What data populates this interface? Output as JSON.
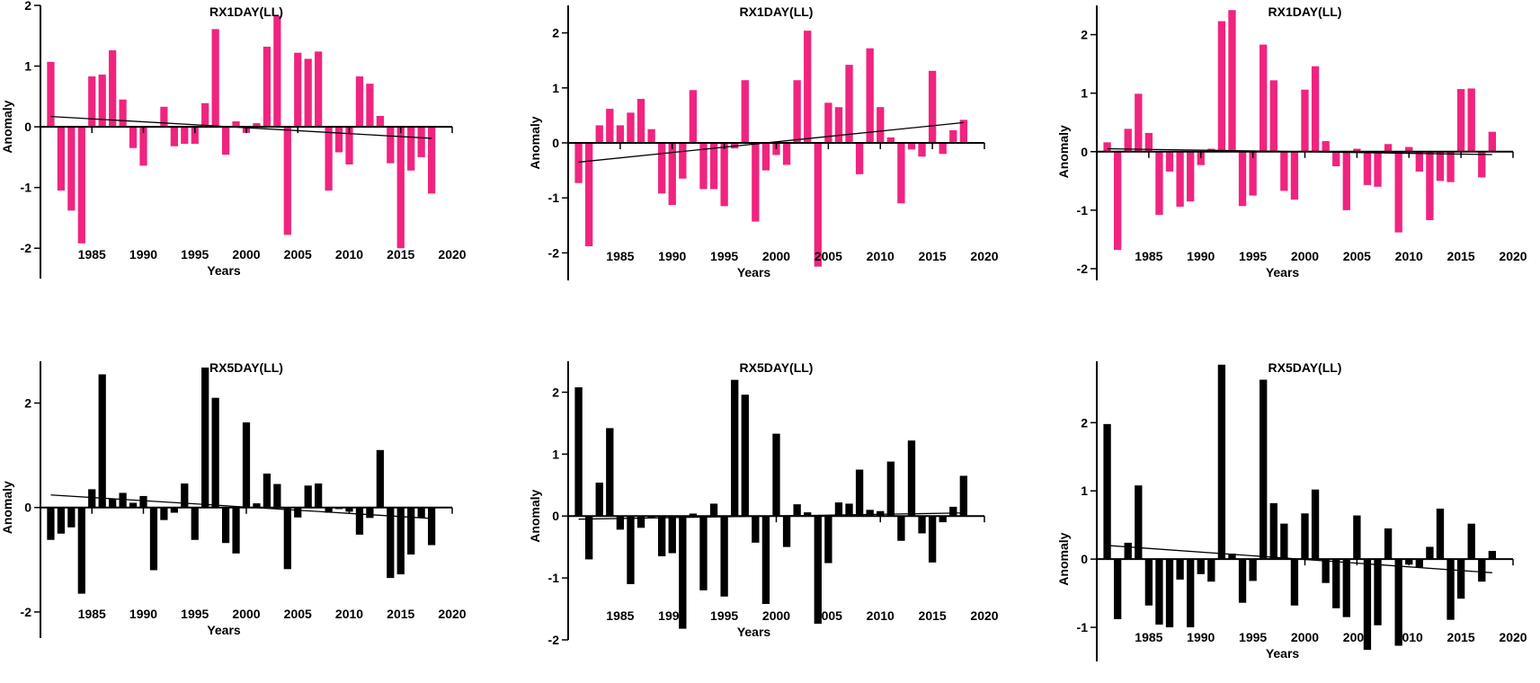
{
  "chart_data": [
    {
      "type": "bar",
      "title": "RX1DAY(LL)",
      "xlabel": "Years",
      "ylabel": "Anomaly",
      "color": "#f0247f",
      "xlim": [
        1980,
        2020
      ],
      "ylim": [
        -2.5,
        2
      ],
      "yticks": [
        -2,
        -1,
        0,
        1,
        2
      ],
      "xticks": [
        1985,
        1990,
        1995,
        2000,
        2005,
        2010,
        2015,
        2020
      ],
      "x": [
        1981,
        1982,
        1983,
        1984,
        1985,
        1986,
        1987,
        1988,
        1989,
        1990,
        1991,
        1992,
        1993,
        1994,
        1995,
        1996,
        1997,
        1998,
        1999,
        2000,
        2001,
        2002,
        2003,
        2004,
        2005,
        2006,
        2007,
        2008,
        2009,
        2010,
        2011,
        2012,
        2013,
        2014,
        2015,
        2016,
        2017,
        2018
      ],
      "values": [
        1.07,
        -1.05,
        -1.38,
        -1.92,
        0.83,
        0.86,
        1.26,
        0.45,
        -0.35,
        -0.64,
        0.0,
        0.33,
        -0.32,
        -0.28,
        -0.28,
        0.39,
        1.61,
        -0.46,
        0.09,
        -0.1,
        0.06,
        1.32,
        1.83,
        -1.78,
        1.22,
        1.12,
        1.24,
        -1.05,
        -0.42,
        -0.62,
        0.83,
        0.71,
        0.18,
        -0.6,
        -2.0,
        -0.72,
        -0.5,
        -1.1
      ],
      "trend": [
        [
          1981,
          0.17
        ],
        [
          2018,
          -0.19
        ]
      ]
    },
    {
      "type": "bar",
      "title": "RX1DAY(LL)",
      "xlabel": "Years",
      "ylabel": "Anomaly",
      "color": "#f0247f",
      "xlim": [
        1980,
        2020
      ],
      "ylim": [
        -2.5,
        2.5
      ],
      "yticks": [
        -2,
        -1,
        0,
        1,
        2
      ],
      "xticks": [
        1985,
        1990,
        1995,
        2000,
        2005,
        2010,
        2015,
        2020
      ],
      "x": [
        1981,
        1982,
        1983,
        1984,
        1985,
        1986,
        1987,
        1988,
        1989,
        1990,
        1991,
        1992,
        1993,
        1994,
        1995,
        1996,
        1997,
        1998,
        1999,
        2000,
        2001,
        2002,
        2003,
        2004,
        2005,
        2006,
        2007,
        2008,
        2009,
        2010,
        2011,
        2012,
        2013,
        2014,
        2015,
        2016,
        2017,
        2018
      ],
      "values": [
        -0.73,
        -1.88,
        0.32,
        0.62,
        0.32,
        0.55,
        0.8,
        0.25,
        -0.92,
        -1.13,
        -0.65,
        0.96,
        -0.84,
        -0.84,
        -1.15,
        -0.1,
        1.14,
        -1.43,
        -0.5,
        -0.22,
        -0.4,
        1.14,
        2.04,
        -2.25,
        0.73,
        0.65,
        1.42,
        -0.57,
        1.72,
        0.65,
        0.1,
        -1.1,
        -0.12,
        -0.25,
        1.31,
        -0.2,
        0.23,
        0.42
      ],
      "trend": [
        [
          1981,
          -0.35
        ],
        [
          2018,
          0.37
        ]
      ]
    },
    {
      "type": "bar",
      "title": "RX1DAY(LL)",
      "xlabel": "Years",
      "ylabel": "Anomaly",
      "color": "#f0247f",
      "xlim": [
        1980,
        2020
      ],
      "ylim": [
        -2.2,
        2.5
      ],
      "yticks": [
        -2,
        -1,
        0,
        1,
        2
      ],
      "xticks": [
        1985,
        1990,
        1995,
        2000,
        2005,
        2010,
        2015,
        2020
      ],
      "x": [
        1981,
        1982,
        1983,
        1984,
        1985,
        1986,
        1987,
        1988,
        1989,
        1990,
        1991,
        1992,
        1993,
        1994,
        1995,
        1996,
        1997,
        1998,
        1999,
        2000,
        2001,
        2002,
        2003,
        2004,
        2005,
        2006,
        2007,
        2008,
        2009,
        2010,
        2011,
        2012,
        2013,
        2014,
        2015,
        2016,
        2017,
        2018
      ],
      "values": [
        0.16,
        -1.68,
        0.39,
        0.99,
        0.32,
        -1.08,
        -0.34,
        -0.94,
        -0.85,
        -0.23,
        0.05,
        2.23,
        2.42,
        -0.93,
        -0.75,
        1.83,
        1.22,
        -0.67,
        -0.82,
        1.06,
        1.46,
        0.18,
        -0.25,
        -1.0,
        0.05,
        -0.57,
        -0.6,
        0.13,
        -1.38,
        0.08,
        -0.34,
        -1.17,
        -0.5,
        -0.52,
        1.07,
        1.08,
        -0.44,
        0.34
      ],
      "trend": [
        [
          1981,
          0.05
        ],
        [
          2018,
          -0.05
        ]
      ]
    },
    {
      "type": "bar",
      "title": "RX5DAY(LL)",
      "xlabel": "Years",
      "ylabel": "Anomaly",
      "color": "#000000",
      "xlim": [
        1980,
        2020
      ],
      "ylim": [
        -2.5,
        2.8
      ],
      "yticks": [
        -2,
        0,
        2
      ],
      "xticks": [
        1985,
        1990,
        1995,
        2000,
        2005,
        2010,
        2015,
        2020
      ],
      "x": [
        1981,
        1982,
        1983,
        1984,
        1985,
        1986,
        1987,
        1988,
        1989,
        1990,
        1991,
        1992,
        1993,
        1994,
        1995,
        1996,
        1997,
        1998,
        1999,
        2000,
        2001,
        2002,
        2003,
        2004,
        2005,
        2006,
        2007,
        2008,
        2009,
        2010,
        2011,
        2012,
        2013,
        2014,
        2015,
        2016,
        2017,
        2018
      ],
      "values": [
        -0.62,
        -0.5,
        -0.38,
        -1.65,
        0.35,
        2.55,
        0.17,
        0.28,
        0.09,
        0.22,
        -1.2,
        -0.24,
        -0.1,
        0.46,
        -0.62,
        2.68,
        2.1,
        -0.68,
        -0.88,
        1.63,
        0.08,
        0.65,
        0.45,
        -1.18,
        -0.19,
        0.42,
        0.46,
        -0.1,
        -0.03,
        -0.08,
        -0.52,
        -0.2,
        1.1,
        -1.35,
        -1.28,
        -0.9,
        -0.2,
        -0.72
      ],
      "trend": [
        [
          1981,
          0.24
        ],
        [
          2018,
          -0.21
        ]
      ]
    },
    {
      "type": "bar",
      "title": "RX5DAY(LL)",
      "xlabel": "Years",
      "ylabel": "Anomaly",
      "color": "#000000",
      "xlim": [
        1980,
        2020
      ],
      "ylim": [
        -2,
        2.5
      ],
      "yticks": [
        -2,
        -1,
        0,
        1,
        2
      ],
      "xticks": [
        1985,
        1990,
        1995,
        2000,
        2005,
        2010,
        2015,
        2020
      ],
      "x": [
        1981,
        1982,
        1983,
        1984,
        1985,
        1986,
        1987,
        1988,
        1989,
        1990,
        1991,
        1992,
        1993,
        1994,
        1995,
        1996,
        1997,
        1998,
        1999,
        2000,
        2001,
        2002,
        2003,
        2004,
        2005,
        2006,
        2007,
        2008,
        2009,
        2010,
        2011,
        2012,
        2013,
        2014,
        2015,
        2016,
        2017,
        2018
      ],
      "values": [
        2.08,
        -0.7,
        0.54,
        1.42,
        -0.22,
        -1.1,
        -0.19,
        -0.03,
        -0.65,
        -0.6,
        -1.82,
        0.04,
        -1.2,
        0.2,
        -1.3,
        2.2,
        1.96,
        -0.43,
        -1.42,
        1.33,
        -0.5,
        0.19,
        0.06,
        -1.74,
        -0.76,
        0.22,
        0.2,
        0.75,
        0.1,
        0.08,
        0.88,
        -0.4,
        1.22,
        -0.28,
        -0.75,
        -0.1,
        0.15,
        0.65
      ],
      "trend": [
        [
          1981,
          -0.05
        ],
        [
          2018,
          0.05
        ]
      ]
    },
    {
      "type": "bar",
      "title": "RX5DAY(LL)",
      "xlabel": "Years",
      "ylabel": "Anomaly",
      "color": "#000000",
      "xlim": [
        1980,
        2020
      ],
      "ylim": [
        -1.5,
        2.9
      ],
      "yticks": [
        -1,
        0,
        1,
        2
      ],
      "xticks": [
        1985,
        1990,
        1995,
        2000,
        2005,
        2010,
        2015,
        2020
      ],
      "x": [
        1981,
        1982,
        1983,
        1984,
        1985,
        1986,
        1987,
        1988,
        1989,
        1990,
        1991,
        1992,
        1993,
        1994,
        1995,
        1996,
        1997,
        1998,
        1999,
        2000,
        2001,
        2002,
        2003,
        2004,
        2005,
        2006,
        2007,
        2008,
        2009,
        2010,
        2011,
        2012,
        2013,
        2014,
        2015,
        2016,
        2017,
        2018
      ],
      "values": [
        1.98,
        -0.88,
        0.24,
        1.08,
        -0.68,
        -0.96,
        -1.0,
        -0.3,
        -1.0,
        -0.22,
        -0.33,
        2.85,
        0.08,
        -0.64,
        -0.32,
        2.63,
        0.82,
        0.52,
        -0.68,
        0.67,
        1.02,
        -0.35,
        -0.72,
        -0.85,
        0.64,
        -1.33,
        -0.97,
        0.45,
        -1.27,
        -0.08,
        -0.12,
        0.18,
        0.74,
        -0.89,
        -0.58,
        0.52,
        -0.33,
        0.12
      ],
      "trend": [
        [
          1981,
          0.2
        ],
        [
          2018,
          -0.2
        ]
      ]
    }
  ]
}
